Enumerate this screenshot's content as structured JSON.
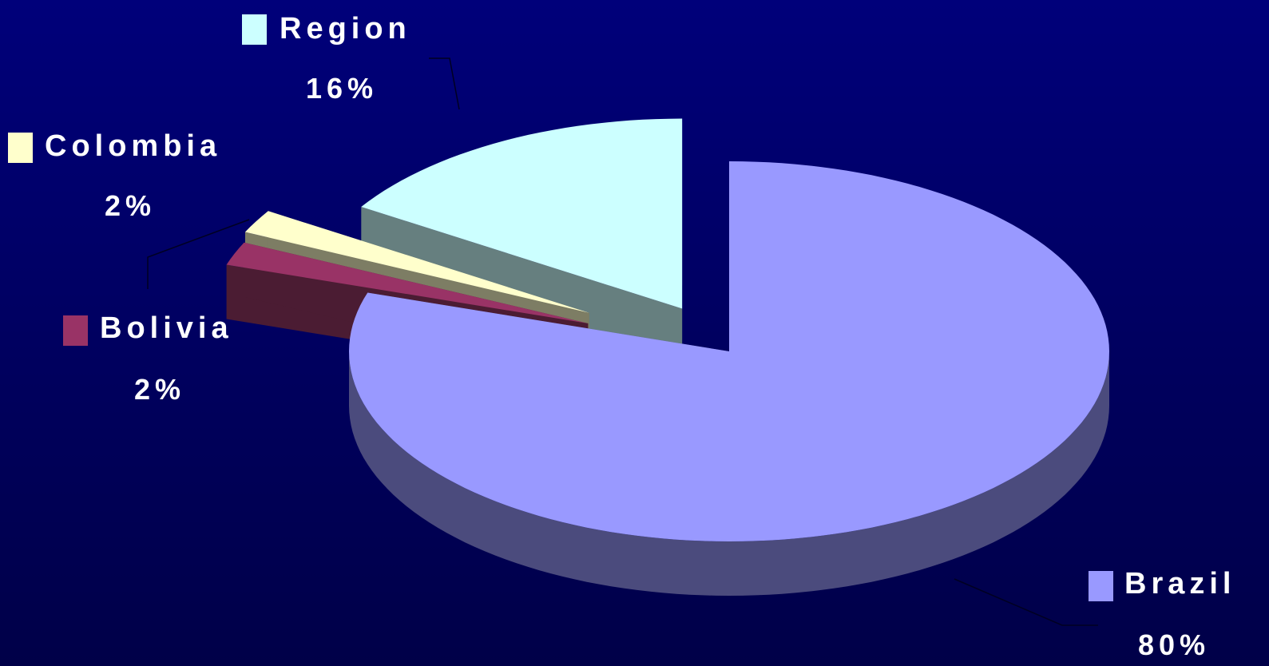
{
  "chart_data": {
    "type": "pie",
    "style": "3d-exploded",
    "slices": [
      {
        "label": "Brazil",
        "value": 80,
        "value_label": "80%",
        "color": "#9999ff",
        "side_color": "#4b4b7d"
      },
      {
        "label": "Bolivia",
        "value": 2,
        "value_label": "2%",
        "color": "#993366",
        "side_color": "#4b1c33"
      },
      {
        "label": "Colombia",
        "value": 2,
        "value_label": "2%",
        "color": "#ffffcc",
        "side_color": "#7d7d64"
      },
      {
        "label": "Region",
        "value": 16,
        "value_label": "16%",
        "color": "#ccffff",
        "side_color": "#667f7f"
      }
    ],
    "legend_markers": "square swatch beside each label",
    "background": "#000066"
  }
}
